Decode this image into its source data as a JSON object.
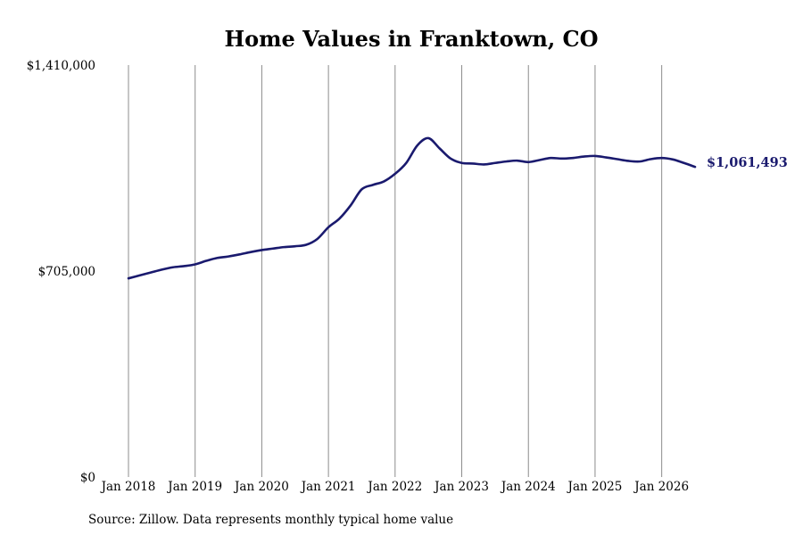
{
  "colors": {
    "series": "#1a1a6e",
    "grid": "#8c8c8c",
    "background": "#ffffff"
  },
  "chart_data": {
    "type": "line",
    "title": "Home Values in Franktown, CO",
    "source": "Source: Zillow. Data represents monthly typical home value",
    "end_label": "$1,061,493",
    "xlabel": "",
    "ylabel": "",
    "xlim": [
      "2018-01",
      "2026-07"
    ],
    "ylim": [
      0,
      1410000
    ],
    "y_ticks": [
      {
        "value": 0,
        "label": "$0"
      },
      {
        "value": 705000,
        "label": "$705,000"
      },
      {
        "value": 1410000,
        "label": "$1,410,000"
      }
    ],
    "x_ticks": [
      {
        "value": "2018-01",
        "label": "Jan 2018"
      },
      {
        "value": "2019-01",
        "label": "Jan 2019"
      },
      {
        "value": "2020-01",
        "label": "Jan 2020"
      },
      {
        "value": "2021-01",
        "label": "Jan 2021"
      },
      {
        "value": "2022-01",
        "label": "Jan 2022"
      },
      {
        "value": "2023-01",
        "label": "Jan 2023"
      },
      {
        "value": "2024-01",
        "label": "Jan 2024"
      },
      {
        "value": "2025-01",
        "label": "Jan 2025"
      },
      {
        "value": "2026-01",
        "label": "Jan 2026"
      }
    ],
    "grid": {
      "vertical": true,
      "horizontal": false
    },
    "series": [
      {
        "points": [
          [
            "2018-01",
            680000
          ],
          [
            "2018-03",
            690000
          ],
          [
            "2018-05",
            700000
          ],
          [
            "2018-07",
            710000
          ],
          [
            "2018-09",
            718000
          ],
          [
            "2018-11",
            722000
          ],
          [
            "2019-01",
            728000
          ],
          [
            "2019-03",
            740000
          ],
          [
            "2019-05",
            750000
          ],
          [
            "2019-07",
            755000
          ],
          [
            "2019-09",
            762000
          ],
          [
            "2019-11",
            770000
          ],
          [
            "2020-01",
            777000
          ],
          [
            "2020-03",
            782000
          ],
          [
            "2020-05",
            787000
          ],
          [
            "2020-07",
            790000
          ],
          [
            "2020-09",
            795000
          ],
          [
            "2020-11",
            815000
          ],
          [
            "2021-01",
            855000
          ],
          [
            "2021-03",
            885000
          ],
          [
            "2021-05",
            930000
          ],
          [
            "2021-07",
            985000
          ],
          [
            "2021-09",
            1000000
          ],
          [
            "2021-11",
            1012000
          ],
          [
            "2022-01",
            1038000
          ],
          [
            "2022-03",
            1075000
          ],
          [
            "2022-05",
            1135000
          ],
          [
            "2022-07",
            1160000
          ],
          [
            "2022-09",
            1125000
          ],
          [
            "2022-11",
            1090000
          ],
          [
            "2023-01",
            1075000
          ],
          [
            "2023-03",
            1073000
          ],
          [
            "2023-05",
            1070000
          ],
          [
            "2023-07",
            1075000
          ],
          [
            "2023-09",
            1080000
          ],
          [
            "2023-11",
            1083000
          ],
          [
            "2024-01",
            1078000
          ],
          [
            "2024-03",
            1085000
          ],
          [
            "2024-05",
            1092000
          ],
          [
            "2024-07",
            1090000
          ],
          [
            "2024-09",
            1092000
          ],
          [
            "2024-11",
            1097000
          ],
          [
            "2025-01",
            1099000
          ],
          [
            "2025-03",
            1094000
          ],
          [
            "2025-05",
            1088000
          ],
          [
            "2025-07",
            1082000
          ],
          [
            "2025-09",
            1080000
          ],
          [
            "2025-11",
            1088000
          ],
          [
            "2026-01",
            1092000
          ],
          [
            "2026-03",
            1087000
          ],
          [
            "2026-05",
            1075000
          ],
          [
            "2026-07",
            1061493
          ]
        ]
      }
    ]
  }
}
